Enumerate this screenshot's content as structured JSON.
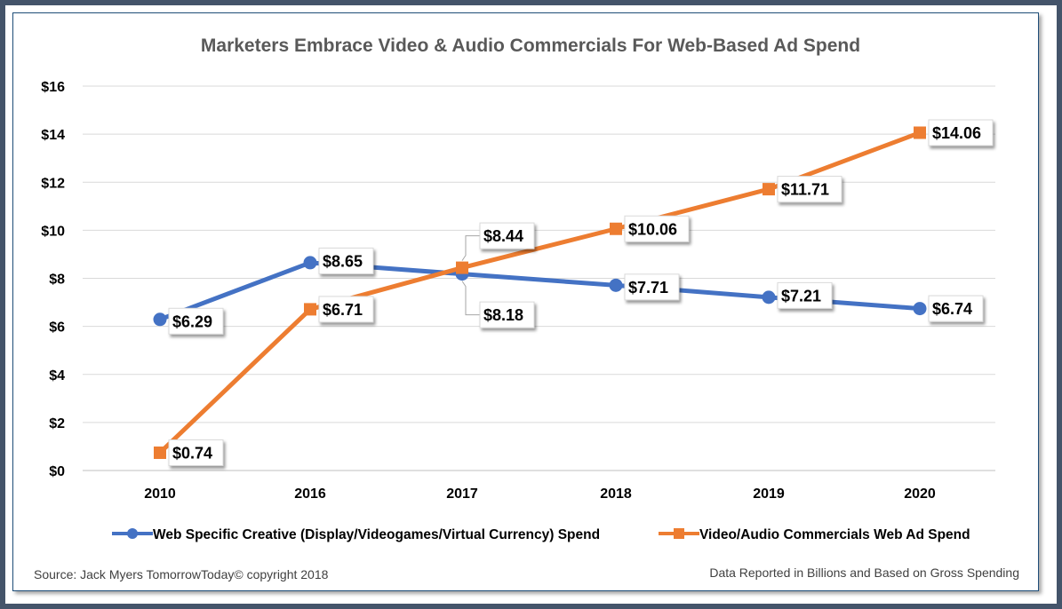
{
  "chart_data": {
    "type": "line",
    "title": "Marketers Embrace Video & Audio Commercials For Web-Based Ad Spend",
    "categories": [
      "2010",
      "2016",
      "2017",
      "2018",
      "2019",
      "2020"
    ],
    "ylim": [
      0,
      16
    ],
    "yticks": [
      0,
      2,
      4,
      6,
      8,
      10,
      12,
      14,
      16
    ],
    "ytick_labels": [
      "$0",
      "$2",
      "$4",
      "$6",
      "$8",
      "$10",
      "$12",
      "$14",
      "$16"
    ],
    "xlabel": "",
    "ylabel": "",
    "grid": true,
    "legend_position": "bottom",
    "series": [
      {
        "name": "Web Specific Creative (Display/Videogames/Virtual Currency) Spend",
        "color": "#4472c4",
        "marker": "circle",
        "values": [
          6.29,
          8.65,
          8.18,
          7.71,
          7.21,
          6.74
        ],
        "labels": [
          "$6.29",
          "$8.65",
          "$8.18",
          "$7.71",
          "$7.21",
          "$6.74"
        ]
      },
      {
        "name": "Video/Audio Commercials Web Ad Spend",
        "color": "#ed7d31",
        "marker": "square",
        "values": [
          0.74,
          6.71,
          8.44,
          10.06,
          11.71,
          14.06
        ],
        "labels": [
          "$0.74",
          "$6.71",
          "$8.44",
          "$10.06",
          "$11.71",
          "$14.06"
        ]
      }
    ]
  },
  "footer": {
    "source": "Source: Jack Myers TomorrowToday© copyright 2018",
    "note": "Data Reported in Billions and Based on Gross Spending"
  }
}
